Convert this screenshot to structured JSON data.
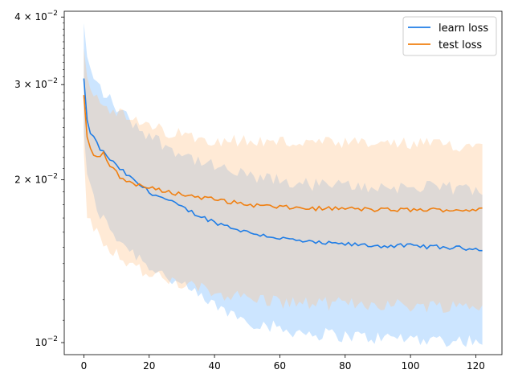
{
  "chart_data": {
    "type": "line",
    "title": "",
    "xlabel": "",
    "ylabel": "",
    "yscale": "log",
    "xlim": [
      -6,
      128
    ],
    "ylim": [
      0.0095,
      0.041
    ],
    "grid": false,
    "legend_position": "top-right",
    "x_ticks": [
      0,
      20,
      40,
      60,
      80,
      100,
      120
    ],
    "x_tick_labels": [
      "0",
      "20",
      "40",
      "60",
      "80",
      "100",
      "120"
    ],
    "y_ticks": [
      {
        "value": 0.01,
        "base": "10",
        "exp": "−2",
        "mant": ""
      },
      {
        "value": 0.02,
        "base": "10",
        "exp": "−2",
        "mant": "2"
      },
      {
        "value": 0.03,
        "base": "10",
        "exp": "−2",
        "mant": "3"
      },
      {
        "value": 0.04,
        "base": "10",
        "exp": "−2",
        "mant": "4"
      }
    ],
    "series": [
      {
        "name": "learn loss",
        "color": "#1f7de6",
        "band_color": "#7fbfff",
        "anchors": [
          [
            0,
            0.0308,
            0.0245,
            0.039
          ],
          [
            1,
            0.0258,
            0.0205,
            0.0338
          ],
          [
            2,
            0.0245,
            0.0192,
            0.0318
          ],
          [
            5,
            0.0228,
            0.0172,
            0.0295
          ],
          [
            10,
            0.0212,
            0.0157,
            0.0272
          ],
          [
            15,
            0.02,
            0.0147,
            0.0255
          ],
          [
            20,
            0.019,
            0.0139,
            0.0242
          ],
          [
            25,
            0.0184,
            0.0133,
            0.0232
          ],
          [
            30,
            0.0178,
            0.0127,
            0.0224
          ],
          [
            35,
            0.0172,
            0.0122,
            0.0217
          ],
          [
            40,
            0.0167,
            0.0117,
            0.0211
          ],
          [
            50,
            0.016,
            0.011,
            0.0203
          ],
          [
            60,
            0.0156,
            0.0106,
            0.0199
          ],
          [
            70,
            0.0153,
            0.0104,
            0.0196
          ],
          [
            80,
            0.0152,
            0.0103,
            0.0195
          ],
          [
            90,
            0.0151,
            0.0102,
            0.0194
          ],
          [
            100,
            0.0151,
            0.0102,
            0.0194
          ],
          [
            110,
            0.015,
            0.0101,
            0.0193
          ],
          [
            122,
            0.0149,
            0.0101,
            0.0192
          ]
        ]
      },
      {
        "name": "test loss",
        "color": "#f07f10",
        "band_color": "#ffc38a",
        "anchors": [
          [
            0,
            0.0287,
            0.0225,
            0.035
          ],
          [
            1,
            0.024,
            0.017,
            0.031
          ],
          [
            2,
            0.0228,
            0.0168,
            0.0296
          ],
          [
            4,
            0.022,
            0.016,
            0.0285
          ],
          [
            6,
            0.0224,
            0.0155,
            0.0278
          ],
          [
            8,
            0.0212,
            0.015,
            0.0272
          ],
          [
            12,
            0.02,
            0.0143,
            0.0262
          ],
          [
            20,
            0.0193,
            0.0133,
            0.025
          ],
          [
            30,
            0.0188,
            0.0128,
            0.0242
          ],
          [
            40,
            0.0184,
            0.0124,
            0.0238
          ],
          [
            50,
            0.018,
            0.0121,
            0.0236
          ],
          [
            60,
            0.0178,
            0.0119,
            0.0235
          ],
          [
            70,
            0.0177,
            0.0118,
            0.0234
          ],
          [
            80,
            0.0177,
            0.0118,
            0.0233
          ],
          [
            90,
            0.0176,
            0.0118,
            0.0233
          ],
          [
            100,
            0.0176,
            0.0117,
            0.0233
          ],
          [
            110,
            0.0176,
            0.0117,
            0.0232
          ],
          [
            122,
            0.0176,
            0.0117,
            0.0232
          ]
        ]
      }
    ]
  }
}
